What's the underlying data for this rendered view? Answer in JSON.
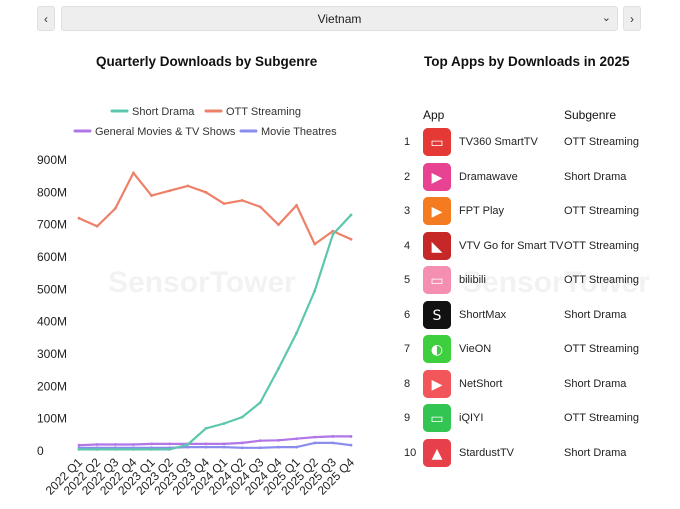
{
  "selector": {
    "value": "Vietnam",
    "prev_icon": "chevron-left-icon",
    "next_icon": "chevron-right-icon",
    "dropdown_icon": "chevron-down-icon"
  },
  "watermark": "SensorTower",
  "chart_data": {
    "type": "line",
    "title": "Quarterly Downloads by Subgenre",
    "categories": [
      "2022 Q1",
      "2022 Q2",
      "2022 Q3",
      "2022 Q4",
      "2023 Q1",
      "2023 Q2",
      "2023 Q3",
      "2023 Q4",
      "2024 Q1",
      "2024 Q2",
      "2024 Q3",
      "2024 Q4",
      "2025 Q1",
      "2025 Q2",
      "2025 Q3",
      "2025 Q4"
    ],
    "y_ticks": [
      "0",
      "100M",
      "200M",
      "300M",
      "400M",
      "500M",
      "600M",
      "700M",
      "800M",
      "900M"
    ],
    "ylim": [
      0,
      900
    ],
    "xlabel": "",
    "ylabel": "",
    "grid": false,
    "series": [
      {
        "name": "Short Drama",
        "color": "#5cc7ad",
        "values": [
          5,
          5,
          5,
          5,
          5,
          5,
          20,
          70,
          85,
          105,
          150,
          255,
          365,
          495,
          670,
          730
        ]
      },
      {
        "name": "OTT Streaming",
        "color": "#ee8069",
        "values": [
          720,
          695,
          750,
          860,
          790,
          805,
          820,
          800,
          765,
          775,
          755,
          700,
          760,
          640,
          680,
          655
        ]
      },
      {
        "name": "General Movies & TV Shows",
        "color": "#b177e6",
        "values": [
          18,
          20,
          20,
          20,
          22,
          22,
          22,
          22,
          22,
          25,
          32,
          33,
          38,
          43,
          45,
          45
        ]
      },
      {
        "name": "Movie Theatres",
        "color": "#8b8ded",
        "values": [
          10,
          10,
          10,
          10,
          10,
          10,
          12,
          12,
          12,
          10,
          10,
          12,
          12,
          25,
          25,
          18
        ]
      }
    ]
  },
  "table": {
    "title": "Top Apps by Downloads in 2025",
    "col_app": "App",
    "col_subgenre": "Subgenre",
    "rows": [
      {
        "rank": "1",
        "name": "TV360 SmartTV",
        "subgenre": "OTT Streaming",
        "icon": "tv360-app-icon",
        "color": "#e53935"
      },
      {
        "rank": "2",
        "name": "Dramawave",
        "subgenre": "Short Drama",
        "icon": "dramawave-app-icon",
        "color": "#e84393"
      },
      {
        "rank": "3",
        "name": "FPT Play",
        "subgenre": "OTT Streaming",
        "icon": "fpt-play-app-icon",
        "color": "#f47b20"
      },
      {
        "rank": "4",
        "name": "VTV Go for Smart TV",
        "subgenre": "OTT Streaming",
        "icon": "vtv-go-app-icon",
        "color": "#c62828"
      },
      {
        "rank": "5",
        "name": "bilibili",
        "subgenre": "OTT Streaming",
        "icon": "bilibili-app-icon",
        "color": "#f48fb1"
      },
      {
        "rank": "6",
        "name": "ShortMax",
        "subgenre": "Short Drama",
        "icon": "shortmax-app-icon",
        "color": "#111111"
      },
      {
        "rank": "7",
        "name": "VieON",
        "subgenre": "OTT Streaming",
        "icon": "vieon-app-icon",
        "color": "#3ecf3e"
      },
      {
        "rank": "8",
        "name": "NetShort",
        "subgenre": "Short Drama",
        "icon": "netshort-app-icon",
        "color": "#f2555a"
      },
      {
        "rank": "9",
        "name": "iQIYI",
        "subgenre": "OTT Streaming",
        "icon": "iqiyi-app-icon",
        "color": "#33c552"
      },
      {
        "rank": "10",
        "name": "StardustTV",
        "subgenre": "Short Drama",
        "icon": "stardusttv-app-icon",
        "color": "#e8404a"
      }
    ]
  }
}
